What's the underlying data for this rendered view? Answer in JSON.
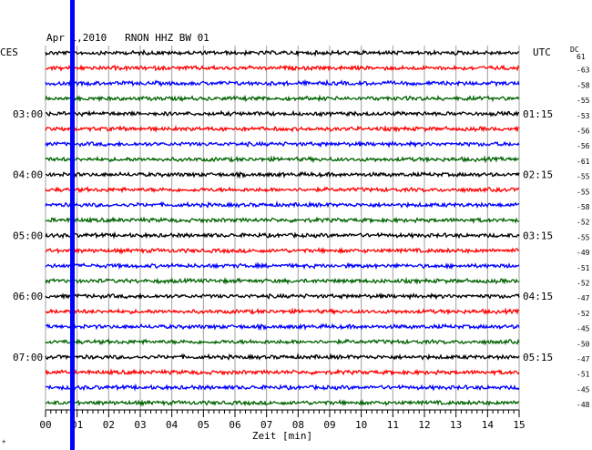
{
  "header": {
    "title": "Apr 1,2010   RNON HHZ BW 01",
    "left_tz": "CES",
    "right_tz": "UTC",
    "dc_label": "DC"
  },
  "chart_data": {
    "type": "line",
    "title": "Apr 1,2010   RNON HHZ BW 01",
    "xlabel": "Zeit [min]",
    "ylabel": "",
    "xlim": [
      0,
      15
    ],
    "x_ticks": [
      "00",
      "01",
      "02",
      "03",
      "04",
      "05",
      "06",
      "07",
      "08",
      "09",
      "10",
      "11",
      "12",
      "13",
      "14",
      "15"
    ],
    "grid": true,
    "trace_colors": [
      "#000000",
      "#ff0000",
      "#0000ff",
      "#006400"
    ],
    "marker_color": "#0000ff",
    "marker_x": 0.85,
    "left_time_labels": [
      {
        "row": 4,
        "label": "03:00"
      },
      {
        "row": 8,
        "label": "04:00"
      },
      {
        "row": 12,
        "label": "05:00"
      },
      {
        "row": 16,
        "label": "06:00"
      },
      {
        "row": 20,
        "label": "07:00"
      }
    ],
    "right_time_labels": [
      {
        "row": 4,
        "label": "01:15"
      },
      {
        "row": 8,
        "label": "02:15"
      },
      {
        "row": 12,
        "label": "03:15"
      },
      {
        "row": 16,
        "label": "04:15"
      },
      {
        "row": 20,
        "label": "05:15"
      }
    ],
    "dc_offsets": [
      "61",
      "-63",
      "-58",
      "-55",
      "-53",
      "-56",
      "-56",
      "-61",
      "-55",
      "-55",
      "-58",
      "-52",
      "-55",
      "-49",
      "-51",
      "-52",
      "-47",
      "-52",
      "-45",
      "-50",
      "-47",
      "-51",
      "-45",
      "-48"
    ]
  }
}
